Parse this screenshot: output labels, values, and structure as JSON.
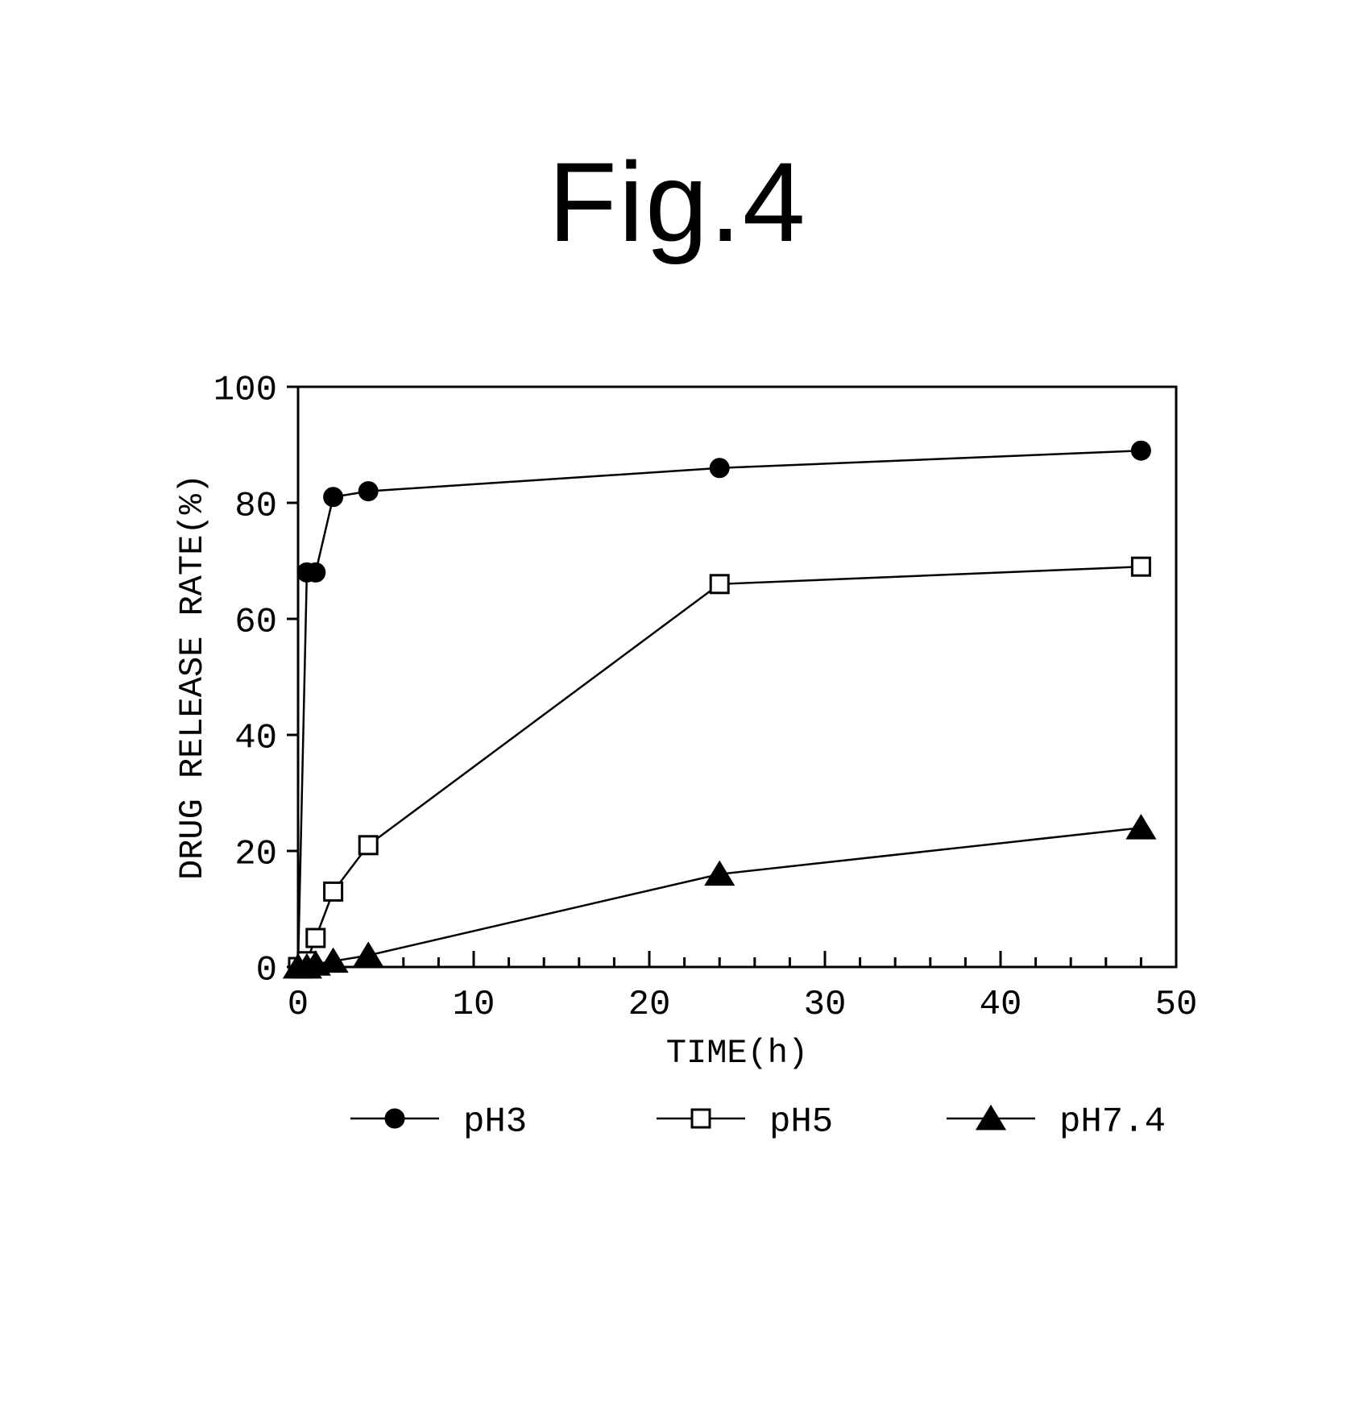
{
  "figure_title": "Fig.4",
  "chart": {
    "type": "line",
    "background_color": "#ffffff",
    "line_color": "#000000",
    "border_width": 3,
    "xlabel": "TIME(h)",
    "ylabel": "DRUG RELEASE RATE(%)",
    "label_fontsize": 42,
    "tick_fontsize": 44,
    "xlim": [
      0,
      50
    ],
    "ylim": [
      0,
      100
    ],
    "xticks": [
      0,
      10,
      20,
      30,
      40,
      50
    ],
    "yticks": [
      0,
      20,
      40,
      60,
      80,
      100
    ],
    "xtick_length_major": 20,
    "xtick_length_minor": 12,
    "xminor_interval": 2,
    "ytick_length": 14,
    "marker_size": 11,
    "marker_stroke": 3,
    "series_line_width": 2.5,
    "series": [
      {
        "name": "pH3",
        "marker": "circle",
        "fill": "#000000",
        "stroke": "#000000",
        "x": [
          0,
          0.5,
          1,
          2,
          4,
          24,
          48
        ],
        "y": [
          0,
          68,
          68,
          81,
          82,
          86,
          89
        ]
      },
      {
        "name": "pH5",
        "marker": "square",
        "fill": "#ffffff",
        "stroke": "#000000",
        "x": [
          0,
          0.5,
          1,
          2,
          4,
          24,
          48
        ],
        "y": [
          0,
          1,
          5,
          13,
          21,
          66,
          69
        ]
      },
      {
        "name": "pH7.4",
        "marker": "triangle",
        "fill": "#000000",
        "stroke": "#000000",
        "x": [
          0,
          0.5,
          1,
          2,
          4,
          24,
          48
        ],
        "y": [
          0,
          0,
          0.5,
          1,
          2,
          16,
          24
        ]
      }
    ],
    "legend": {
      "fontsize": 44,
      "items": [
        "pH3",
        "pH5",
        "pH7.4"
      ]
    }
  }
}
